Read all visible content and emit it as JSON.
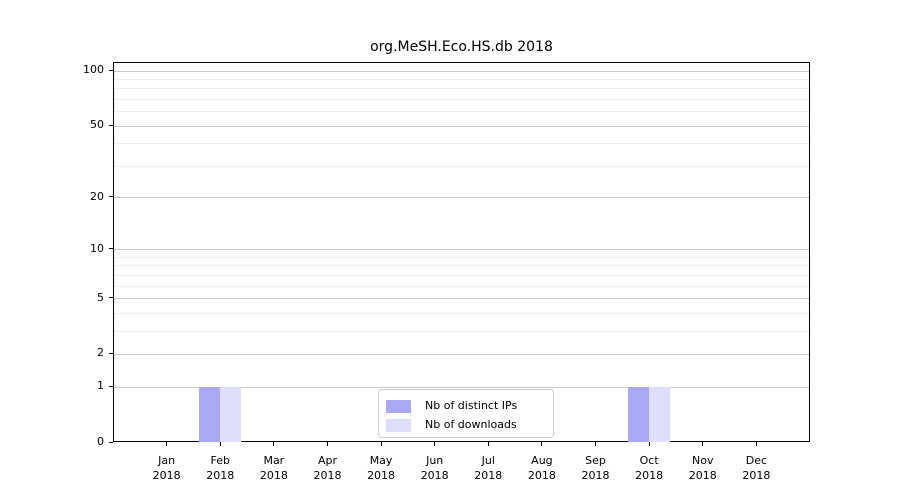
{
  "chart_data": {
    "type": "bar",
    "title": "org.MeSH.Eco.HS.db 2018",
    "categories": [
      "Jan",
      "Feb",
      "Mar",
      "Apr",
      "May",
      "Jun",
      "Jul",
      "Aug",
      "Sep",
      "Oct",
      "Nov",
      "Dec"
    ],
    "x_year_label": "2018",
    "series": [
      {
        "name": "Nb of distinct IPs",
        "color": "#a8a8f5",
        "values": [
          0,
          1,
          0,
          0,
          0,
          0,
          0,
          0,
          0,
          1,
          0,
          0
        ]
      },
      {
        "name": "Nb of downloads",
        "color": "#dedef8",
        "values": [
          0,
          1,
          0,
          0,
          0,
          0,
          0,
          0,
          0,
          1,
          0,
          0
        ]
      }
    ],
    "xlabel": "",
    "ylabel": "",
    "y_scale": "log10(1+x)",
    "y_ticks": [
      0,
      1,
      2,
      5,
      10,
      20,
      50,
      100
    ],
    "y_minor_gridlines": [
      3,
      4,
      6,
      7,
      8,
      9,
      30,
      40,
      60,
      70,
      80,
      90
    ],
    "ylim": [
      0,
      110
    ],
    "grid": "horizontal",
    "legend_position": "lower-center-inside"
  },
  "colors": {
    "axis": "#000000",
    "major_grid": "#cccccc",
    "minor_grid": "#eeeeee",
    "legend_border": "#cccccc",
    "background": "#ffffff"
  }
}
